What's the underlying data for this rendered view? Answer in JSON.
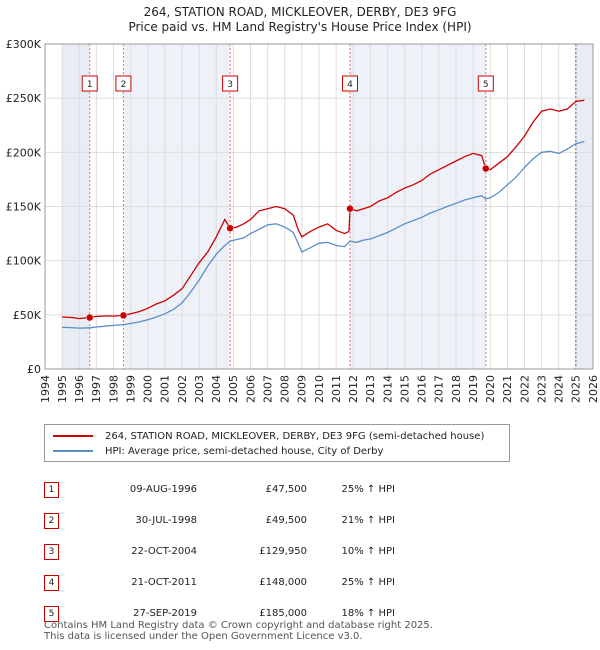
{
  "chart_data": {
    "type": "line",
    "title": "264, STATION ROAD, MICKLEOVER, DERBY, DE3 9FG",
    "subtitle": "Price paid vs. HM Land Registry's House Price Index (HPI)",
    "xlim": [
      1995,
      2026
    ],
    "ylim": [
      0,
      300000
    ],
    "x_ticks": [
      1994,
      1995,
      1996,
      1997,
      1998,
      1999,
      2000,
      2001,
      2002,
      2003,
      2004,
      2005,
      2006,
      2007,
      2008,
      2009,
      2010,
      2011,
      2012,
      2013,
      2014,
      2015,
      2016,
      2017,
      2018,
      2019,
      2020,
      2021,
      2022,
      2023,
      2024,
      2025,
      2026
    ],
    "y_ticks": [
      {
        "value": 0,
        "label": "£0"
      },
      {
        "value": 50000,
        "label": "£50K"
      },
      {
        "value": 100000,
        "label": "£100K"
      },
      {
        "value": 150000,
        "label": "£150K"
      },
      {
        "value": 200000,
        "label": "£200K"
      },
      {
        "value": 250000,
        "label": "£250K"
      },
      {
        "value": 300000,
        "label": "£300K"
      }
    ],
    "series": [
      {
        "name": "264, STATION ROAD, MICKLEOVER, DERBY, DE3 9FG (semi-detached house)",
        "color": "#cc0000",
        "points": [
          [
            1995.0,
            48000
          ],
          [
            1995.6,
            47500
          ],
          [
            1996.0,
            46500
          ],
          [
            1996.6,
            47500
          ],
          [
            1997.0,
            48500
          ],
          [
            1997.6,
            49000
          ],
          [
            1998.0,
            48800
          ],
          [
            1998.58,
            49500
          ],
          [
            1999.0,
            51000
          ],
          [
            1999.5,
            53000
          ],
          [
            2000.0,
            56000
          ],
          [
            2000.5,
            60000
          ],
          [
            2001.0,
            63000
          ],
          [
            2001.5,
            68000
          ],
          [
            2002.0,
            74000
          ],
          [
            2002.5,
            86000
          ],
          [
            2003.0,
            98000
          ],
          [
            2003.5,
            108000
          ],
          [
            2004.0,
            122000
          ],
          [
            2004.5,
            138000
          ],
          [
            2004.81,
            129950
          ],
          [
            2005.2,
            131000
          ],
          [
            2005.6,
            134000
          ],
          [
            2006.0,
            138000
          ],
          [
            2006.5,
            146000
          ],
          [
            2007.0,
            148000
          ],
          [
            2007.5,
            150000
          ],
          [
            2008.0,
            148000
          ],
          [
            2008.5,
            142000
          ],
          [
            2008.8,
            128000
          ],
          [
            2009.0,
            122000
          ],
          [
            2009.5,
            127000
          ],
          [
            2010.0,
            131000
          ],
          [
            2010.5,
            134000
          ],
          [
            2011.0,
            128000
          ],
          [
            2011.5,
            125000
          ],
          [
            2011.75,
            127000
          ],
          [
            2011.81,
            148000
          ],
          [
            2012.2,
            146000
          ],
          [
            2012.6,
            148000
          ],
          [
            2013.0,
            150000
          ],
          [
            2013.5,
            155000
          ],
          [
            2014.0,
            158000
          ],
          [
            2014.5,
            163000
          ],
          [
            2015.0,
            167000
          ],
          [
            2015.5,
            170000
          ],
          [
            2016.0,
            174000
          ],
          [
            2016.5,
            180000
          ],
          [
            2017.0,
            184000
          ],
          [
            2017.5,
            188000
          ],
          [
            2018.0,
            192000
          ],
          [
            2018.5,
            196000
          ],
          [
            2019.0,
            199000
          ],
          [
            2019.5,
            197000
          ],
          [
            2019.74,
            185000
          ],
          [
            2020.0,
            184000
          ],
          [
            2020.5,
            190000
          ],
          [
            2021.0,
            196000
          ],
          [
            2021.5,
            205000
          ],
          [
            2022.0,
            215000
          ],
          [
            2022.5,
            228000
          ],
          [
            2023.0,
            238000
          ],
          [
            2023.5,
            240000
          ],
          [
            2024.0,
            238000
          ],
          [
            2024.5,
            240000
          ],
          [
            2025.0,
            247000
          ],
          [
            2025.5,
            248000
          ]
        ]
      },
      {
        "name": "HPI: Average price, semi-detached house, City of Derby",
        "color": "#5b8ec9",
        "points": [
          [
            1995.0,
            38500
          ],
          [
            1995.5,
            38200
          ],
          [
            1996.0,
            37800
          ],
          [
            1996.6,
            38000
          ],
          [
            1997.0,
            38800
          ],
          [
            1997.5,
            39500
          ],
          [
            1998.0,
            40200
          ],
          [
            1998.58,
            41000
          ],
          [
            1999.0,
            42000
          ],
          [
            1999.5,
            43500
          ],
          [
            2000.0,
            45500
          ],
          [
            2000.5,
            48000
          ],
          [
            2001.0,
            51000
          ],
          [
            2001.5,
            55000
          ],
          [
            2002.0,
            61000
          ],
          [
            2002.5,
            71000
          ],
          [
            2003.0,
            82000
          ],
          [
            2003.5,
            95000
          ],
          [
            2004.0,
            106000
          ],
          [
            2004.5,
            114000
          ],
          [
            2004.81,
            118000
          ],
          [
            2005.2,
            119500
          ],
          [
            2005.6,
            121000
          ],
          [
            2006.0,
            125000
          ],
          [
            2006.5,
            129000
          ],
          [
            2007.0,
            133000
          ],
          [
            2007.5,
            134000
          ],
          [
            2008.0,
            131000
          ],
          [
            2008.5,
            126000
          ],
          [
            2009.0,
            108000
          ],
          [
            2009.5,
            112000
          ],
          [
            2010.0,
            116000
          ],
          [
            2010.5,
            117000
          ],
          [
            2011.0,
            114000
          ],
          [
            2011.5,
            113000
          ],
          [
            2011.81,
            118000
          ],
          [
            2012.2,
            117000
          ],
          [
            2012.6,
            119000
          ],
          [
            2013.0,
            120000
          ],
          [
            2013.5,
            123000
          ],
          [
            2014.0,
            126000
          ],
          [
            2014.5,
            130000
          ],
          [
            2015.0,
            134000
          ],
          [
            2015.5,
            137000
          ],
          [
            2016.0,
            140000
          ],
          [
            2016.5,
            144000
          ],
          [
            2017.0,
            147000
          ],
          [
            2017.5,
            150000
          ],
          [
            2018.0,
            153000
          ],
          [
            2018.5,
            156000
          ],
          [
            2019.0,
            158000
          ],
          [
            2019.5,
            160000
          ],
          [
            2019.74,
            157000
          ],
          [
            2020.0,
            158000
          ],
          [
            2020.5,
            163000
          ],
          [
            2021.0,
            170000
          ],
          [
            2021.5,
            177000
          ],
          [
            2022.0,
            186000
          ],
          [
            2022.5,
            194000
          ],
          [
            2023.0,
            200000
          ],
          [
            2023.5,
            201000
          ],
          [
            2024.0,
            199000
          ],
          [
            2024.5,
            203000
          ],
          [
            2025.0,
            208000
          ],
          [
            2025.5,
            210000
          ]
        ]
      }
    ],
    "sales": [
      {
        "num": "1",
        "x": 1996.61,
        "price": 47500
      },
      {
        "num": "2",
        "x": 1998.58,
        "price": 49500
      },
      {
        "num": "3",
        "x": 2004.81,
        "price": 129950
      },
      {
        "num": "4",
        "x": 2011.81,
        "price": 148000
      },
      {
        "num": "5",
        "x": 2019.74,
        "price": 185000
      }
    ],
    "shaded_ranges": [
      [
        1995.0,
        1996.61
      ],
      [
        2025.0,
        2026.0
      ]
    ]
  },
  "legend": {
    "red_label": "264, STATION ROAD, MICKLEOVER, DERBY, DE3 9FG (semi-detached house)",
    "blue_label": "HPI: Average price, semi-detached house, City of Derby"
  },
  "table": [
    {
      "num": "1",
      "date": "09-AUG-1996",
      "price": "£47,500",
      "hpi": "25% ↑ HPI"
    },
    {
      "num": "2",
      "date": "30-JUL-1998",
      "price": "£49,500",
      "hpi": "21% ↑ HPI"
    },
    {
      "num": "3",
      "date": "22-OCT-2004",
      "price": "£129,950",
      "hpi": "10% ↑ HPI"
    },
    {
      "num": "4",
      "date": "21-OCT-2011",
      "price": "£148,000",
      "hpi": "25% ↑ HPI"
    },
    {
      "num": "5",
      "date": "27-SEP-2019",
      "price": "£185,000",
      "hpi": "18% ↑ HPI"
    }
  ],
  "footer": {
    "line1": "Contains HM Land Registry data © Crown copyright and database right 2025.",
    "line2": "This data is licensed under the Open Government Licence v3.0."
  }
}
